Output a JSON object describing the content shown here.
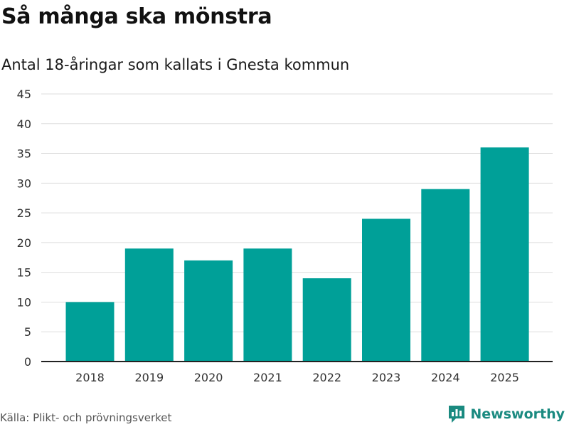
{
  "header": {
    "title": "Så många ska mönstra",
    "subtitle": "Antal 18-åringar som kallats i Gnesta kommun"
  },
  "footer": {
    "source": "Källa: Plikt- och prövningsverket",
    "logo_text": "Newsworthy"
  },
  "colors": {
    "bar": "#00a098",
    "grid": "#dddddd",
    "axis": "#222222",
    "brand": "#1a8a80"
  },
  "chart_data": {
    "type": "bar",
    "title": "Så många ska mönstra",
    "subtitle": "Antal 18-åringar som kallats i Gnesta kommun",
    "xlabel": "",
    "ylabel": "",
    "categories": [
      "2018",
      "2019",
      "2020",
      "2021",
      "2022",
      "2023",
      "2024",
      "2025"
    ],
    "values": [
      10,
      19,
      17,
      19,
      14,
      24,
      29,
      36
    ],
    "ylim": [
      0,
      45
    ],
    "yticks": [
      0,
      5,
      10,
      15,
      20,
      25,
      30,
      35,
      40,
      45
    ],
    "grid": true
  }
}
